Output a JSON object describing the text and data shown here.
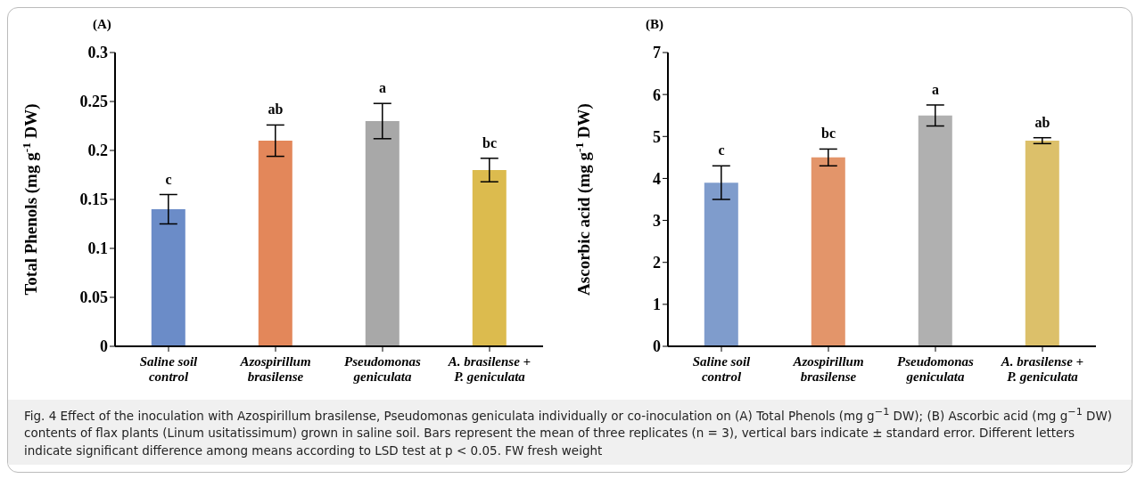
{
  "chart_data": [
    {
      "type": "bar",
      "title": "(A)",
      "ylabel": "Total Phenols (mg g$^{-1}$ DW)",
      "categories": [
        "Saline soil control",
        "Azospirillum brasilense",
        "Pseudomonas geniculata",
        "A. brasilense + P. geniculata"
      ],
      "values": [
        0.14,
        0.21,
        0.23,
        0.18
      ],
      "errors": [
        0.015,
        0.016,
        0.018,
        0.012
      ],
      "colors": [
        "#6b8cc8",
        "#e3875a",
        "#a8a8a8",
        "#dcbb4e"
      ],
      "ylim": [
        0,
        0.3
      ],
      "yticks": [
        0,
        0.05,
        0.1,
        0.15,
        0.2,
        0.25,
        0.3
      ],
      "grid": false,
      "legend": false,
      "annotations": [
        {
          "text": "c",
          "x": "Saline soil control",
          "y": 0.14
        },
        {
          "text": "ab",
          "x": "Azospirillum brasilense",
          "y": 0.21
        },
        {
          "text": "a",
          "x": "Pseudomonas geniculata",
          "y": 0.23
        },
        {
          "text": "bc",
          "x": "A. brasilense + P. geniculata",
          "y": 0.18
        },
        "Fig. 4  Effect of the inoculation with Azospirillum brasilense, Pseudomonas geniculata individually or co-inoculation on (A) Total Phenols (mg g$^{−1}$ DW); (B) Ascorbic acid (mg g$^{−1}$ DW) contents of flax plants (Linum usitatissimum) grown in saline soil. Bars represent the mean of three replicates (n = 3), vertical bars indicate ± standard error. Different letters indicate significant difference among means according to LSD test at p < 0.05. FW fresh weight"
      ]
    },
    {
      "type": "bar",
      "title": "(B)",
      "ylabel": "Ascorbic acid (mg g$^{-1}$ DW)",
      "categories": [
        "Saline soil control",
        "Azospirillum brasilense",
        "Pseudomonas geniculata",
        "A. brasilense + P. geniculata"
      ],
      "values": [
        3.9,
        4.5,
        5.5,
        4.9
      ],
      "errors": [
        0.4,
        0.2,
        0.25,
        0.07
      ],
      "colors": [
        "#7f9ccc",
        "#e3956a",
        "#b0b0b0",
        "#dcc06a"
      ],
      "ylim": [
        0,
        7
      ],
      "yticks": [
        0,
        1,
        2,
        3,
        4,
        5,
        6,
        7
      ],
      "grid": false,
      "legend": false,
      "annotations": [
        {
          "text": "c",
          "x": "Saline soil control",
          "y": 3.9
        },
        {
          "text": "bc",
          "x": "Azospirillum brasilense",
          "y": 4.5
        },
        {
          "text": "a",
          "x": "Pseudomonas geniculata",
          "y": 5.5
        },
        {
          "text": "ab",
          "x": "A. brasilense + P. geniculata",
          "y": 4.9
        }
      ]
    }
  ]
}
